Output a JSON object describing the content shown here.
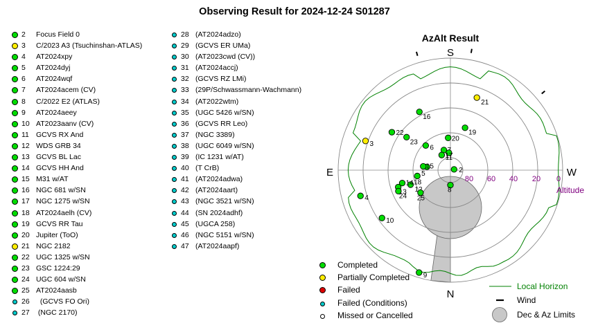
{
  "title": "Observing Result for 2024-12-24 S01287",
  "colors": {
    "completed": "#00dd00",
    "partial": "#ffee00",
    "failed": "#dd0000",
    "failed_conditions": "#00cccc",
    "missed": "#ffffff",
    "horizon": "#008000",
    "limits": "#c8c8c8",
    "altitude_label": "#800080"
  },
  "targets": [
    {
      "num": "2",
      "name": "Focus Field 0",
      "status": "completed"
    },
    {
      "num": "3",
      "name": "C/2023 A3 (Tsuchinshan-ATLAS)",
      "status": "partial"
    },
    {
      "num": "4",
      "name": "AT2024xpy",
      "status": "completed"
    },
    {
      "num": "5",
      "name": "AT2024dyj",
      "status": "completed"
    },
    {
      "num": "6",
      "name": "AT2024wqf",
      "status": "completed"
    },
    {
      "num": "7",
      "name": "AT2024acem (CV)",
      "status": "completed"
    },
    {
      "num": "8",
      "name": "C/2022 E2 (ATLAS)",
      "status": "completed"
    },
    {
      "num": "9",
      "name": "AT2024aeey",
      "status": "completed"
    },
    {
      "num": "10",
      "name": "AT2023aanv (CV)",
      "status": "completed"
    },
    {
      "num": "11",
      "name": "GCVS RX And",
      "status": "completed"
    },
    {
      "num": "12",
      "name": "WDS GRB 34",
      "status": "completed"
    },
    {
      "num": "13",
      "name": "GCVS BL Lac",
      "status": "completed"
    },
    {
      "num": "14",
      "name": "GCVS HH And",
      "status": "completed"
    },
    {
      "num": "15",
      "name": "M31 w/AT",
      "status": "completed"
    },
    {
      "num": "16",
      "name": "NGC 681 w/SN",
      "status": "completed"
    },
    {
      "num": "17",
      "name": "NGC 1275 w/SN",
      "status": "completed"
    },
    {
      "num": "18",
      "name": "AT2024aelh (CV)",
      "status": "completed"
    },
    {
      "num": "19",
      "name": "GCVS RR Tau",
      "status": "completed"
    },
    {
      "num": "20",
      "name": "Jupiter (ToO)",
      "status": "completed"
    },
    {
      "num": "21",
      "name": "NGC 2182",
      "status": "partial"
    },
    {
      "num": "22",
      "name": "UGC 1325 w/SN",
      "status": "completed"
    },
    {
      "num": "23",
      "name": "GSC 1224:29",
      "status": "completed"
    },
    {
      "num": "24",
      "name": "UGC 604 w/SN",
      "status": "completed"
    },
    {
      "num": "25",
      "name": "AT2024aasb",
      "status": "completed"
    },
    {
      "num": "26",
      "name": "  (GCVS FO Ori)",
      "status": "failed_conditions"
    },
    {
      "num": "27",
      "name": " (NGC 2170)",
      "status": "failed_conditions"
    },
    {
      "num": "28",
      "name": "(AT2024adzo)",
      "status": "failed_conditions"
    },
    {
      "num": "29",
      "name": "(GCVS ER UMa)",
      "status": "failed_conditions"
    },
    {
      "num": "30",
      "name": "(AT2023cwd (CV))",
      "status": "failed_conditions"
    },
    {
      "num": "31",
      "name": "(AT2024accj)",
      "status": "failed_conditions"
    },
    {
      "num": "32",
      "name": "(GCVS RZ LMi)",
      "status": "failed_conditions"
    },
    {
      "num": "33",
      "name": "(29P/Schwassmann-Wachmann)",
      "status": "failed_conditions"
    },
    {
      "num": "34",
      "name": "(AT2022wtm)",
      "status": "failed_conditions"
    },
    {
      "num": "35",
      "name": "(UGC 5426 w/SN)",
      "status": "failed_conditions"
    },
    {
      "num": "36",
      "name": "(GCVS RR Leo)",
      "status": "failed_conditions"
    },
    {
      "num": "37",
      "name": "(NGC 3389)",
      "status": "failed_conditions"
    },
    {
      "num": "38",
      "name": "(UGC 6049 w/SN)",
      "status": "failed_conditions"
    },
    {
      "num": "39",
      "name": "(IC 1231 w/AT)",
      "status": "failed_conditions"
    },
    {
      "num": "40",
      "name": "(T CrB)",
      "status": "failed_conditions"
    },
    {
      "num": "41",
      "name": "(AT2024adwa)",
      "status": "failed_conditions"
    },
    {
      "num": "42",
      "name": "(AT2024aart)",
      "status": "failed_conditions"
    },
    {
      "num": "43",
      "name": "(NGC 3521 w/SN)",
      "status": "failed_conditions"
    },
    {
      "num": "44",
      "name": "(SN 2024adhf)",
      "status": "failed_conditions"
    },
    {
      "num": "45",
      "name": "(UGCA 258)",
      "status": "failed_conditions"
    },
    {
      "num": "46",
      "name": "(NGC 5151 w/SN)",
      "status": "failed_conditions"
    },
    {
      "num": "47",
      "name": "(AT2024aapf)",
      "status": "failed_conditions"
    }
  ],
  "chart_data": {
    "type": "scatter",
    "title": "AzAlt Result",
    "projection": "polar azimuth-altitude",
    "directions": {
      "top": "S",
      "bottom": "N",
      "left": "E",
      "right": "W"
    },
    "altitude_ticks": [
      0,
      20,
      40,
      60,
      80
    ],
    "altitude_label": "Altitude",
    "grid": true,
    "points": [
      {
        "label": "2",
        "az": 258,
        "alt": 87,
        "status": "completed"
      },
      {
        "label": "3",
        "az": 109,
        "alt": 18,
        "status": "partial"
      },
      {
        "label": "4",
        "az": 74,
        "alt": 15,
        "status": "completed"
      },
      {
        "label": "5",
        "az": 98,
        "alt": 71,
        "status": "completed"
      },
      {
        "label": "6",
        "az": 135,
        "alt": 62,
        "status": "completed"
      },
      {
        "label": "7",
        "az": 162,
        "alt": 73,
        "status": "completed"
      },
      {
        "label": "8",
        "az": 0,
        "alt": 78,
        "status": "completed"
      },
      {
        "label": "9",
        "az": 17,
        "alt": 4,
        "status": "completed"
      },
      {
        "label": "10",
        "az": 55,
        "alt": 23,
        "status": "completed"
      },
      {
        "label": "11",
        "az": 175,
        "alt": 76,
        "status": "completed"
      },
      {
        "label": "12",
        "az": 70,
        "alt": 56,
        "status": "completed"
      },
      {
        "label": "13",
        "az": 72,
        "alt": 46,
        "status": "completed"
      },
      {
        "label": "14",
        "az": 75,
        "alt": 50,
        "status": "completed"
      },
      {
        "label": "15",
        "az": 98,
        "alt": 68,
        "status": "completed"
      },
      {
        "label": "16",
        "az": 152,
        "alt": 37,
        "status": "completed"
      },
      {
        "label": "17",
        "az": 150,
        "alt": 76,
        "status": "completed"
      },
      {
        "label": "18",
        "az": 80,
        "alt": 63,
        "status": "completed"
      },
      {
        "label": "19",
        "az": 199,
        "alt": 54,
        "status": "completed"
      },
      {
        "label": "20",
        "az": 176,
        "alt": 64,
        "status": "completed"
      },
      {
        "label": "21",
        "az": 200,
        "alt": 28,
        "status": "partial"
      },
      {
        "label": "22",
        "az": 123,
        "alt": 34,
        "status": "completed"
      },
      {
        "label": "23",
        "az": 127,
        "alt": 46,
        "status": "completed"
      },
      {
        "label": "24",
        "az": 68,
        "alt": 45,
        "status": "completed"
      },
      {
        "label": "25",
        "az": 53,
        "alt": 60,
        "status": "completed"
      }
    ],
    "local_horizon": true,
    "wind_markers": true,
    "limits": "Dec & Az Limits"
  },
  "plot_labels": {
    "title": "AzAlt Result",
    "S": "S",
    "N": "N",
    "E": "E",
    "W": "W",
    "alt_ticks": [
      "80",
      "60",
      "40",
      "20",
      "0"
    ],
    "altitude": "Altitude"
  },
  "legend_left": [
    {
      "label": "Completed",
      "status": "completed"
    },
    {
      "label": "Partially Completed",
      "status": "partial"
    },
    {
      "label": "Failed",
      "status": "failed"
    },
    {
      "label": "Failed (Conditions)",
      "status": "failed_conditions"
    },
    {
      "label": "Missed or Cancelled",
      "status": "missed"
    }
  ],
  "legend_right": {
    "horizon": "Local Horizon",
    "wind": "Wind",
    "limits": "Dec & Az Limits"
  }
}
